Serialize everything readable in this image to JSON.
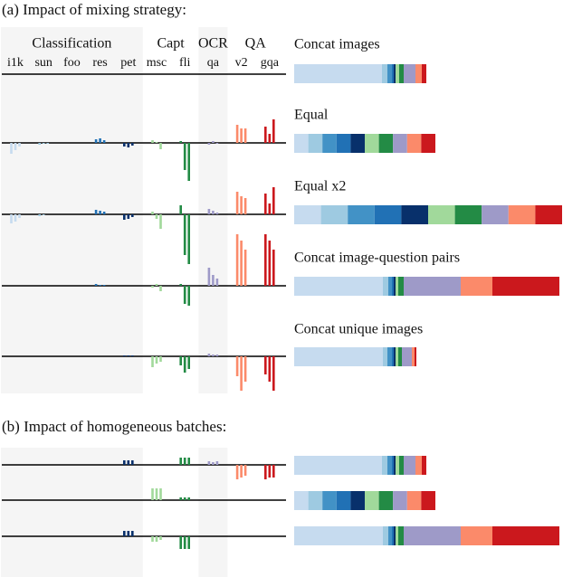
{
  "section_a": {
    "title": "(a) Impact of mixing strategy:",
    "groups": [
      {
        "label": "Classification",
        "tasks": [
          "i1k",
          "sun",
          "foo",
          "res",
          "pet"
        ]
      },
      {
        "label": "Capt",
        "tasks": [
          "msc",
          "fli"
        ]
      },
      {
        "label": "OCR",
        "tasks": [
          "qa"
        ]
      },
      {
        "label": "QA",
        "tasks": [
          "v2",
          "gqa"
        ]
      }
    ],
    "rows": [
      {
        "name": "Concat images",
        "deltas": [
          [
            0,
            0,
            0
          ],
          [
            0,
            0,
            0
          ],
          [
            0,
            0,
            0
          ],
          [
            0,
            0,
            0
          ],
          [
            0,
            0,
            0
          ],
          [
            0,
            0,
            0
          ],
          [
            0,
            0,
            0
          ],
          [
            0,
            0,
            0
          ],
          [
            0,
            0,
            0
          ],
          [
            0,
            0,
            0
          ]
        ],
        "mixture": [
          97,
          6,
          5,
          2,
          2,
          4,
          5,
          13,
          7,
          5
        ]
      },
      {
        "name": "Equal",
        "deltas": [
          [
            -12,
            -8,
            -4
          ],
          [
            -2,
            -1,
            -1
          ],
          [
            0,
            0,
            0
          ],
          [
            4,
            5,
            3
          ],
          [
            -4,
            -5,
            -3
          ],
          [
            3,
            1,
            -7
          ],
          [
            2,
            -30,
            -42
          ],
          [
            -2,
            2,
            -1
          ],
          [
            20,
            16,
            16
          ],
          [
            18,
            10,
            26
          ]
        ],
        "mixture": [
          15.6,
          15.6,
          15.6,
          15.6,
          15.6,
          15.6,
          15.6,
          15.6,
          15.6,
          15.6
        ]
      },
      {
        "name": "Equal x2",
        "deltas": [
          [
            -10,
            -8,
            -4
          ],
          [
            -2,
            -1,
            0
          ],
          [
            0,
            0,
            0
          ],
          [
            5,
            4,
            3
          ],
          [
            -6,
            -5,
            -3
          ],
          [
            3,
            -5,
            -16
          ],
          [
            10,
            -45,
            -55
          ],
          [
            6,
            4,
            2
          ],
          [
            25,
            20,
            18
          ],
          [
            23,
            12,
            30
          ]
        ],
        "mixture": [
          29.6,
          29.6,
          29.6,
          29.6,
          29.6,
          29.6,
          29.6,
          29.6,
          29.6,
          29.6
        ]
      },
      {
        "name": "Concat image-question pairs",
        "deltas": [
          [
            0,
            0,
            0
          ],
          [
            0,
            0,
            0
          ],
          [
            0,
            0,
            0
          ],
          [
            2,
            1,
            1
          ],
          [
            0,
            0,
            0
          ],
          [
            -2,
            2,
            -6
          ],
          [
            2,
            -20,
            -22
          ],
          [
            20,
            12,
            8
          ],
          [
            57,
            50,
            40
          ],
          [
            57,
            50,
            40
          ]
        ],
        "mixture": [
          98,
          6,
          4,
          2,
          2,
          3,
          6,
          63,
          35,
          74
        ]
      },
      {
        "name": "Concat unique images",
        "deltas": [
          [
            0,
            0,
            0
          ],
          [
            0,
            0,
            0
          ],
          [
            0,
            0,
            0
          ],
          [
            0,
            0,
            0
          ],
          [
            1,
            1,
            1
          ],
          [
            -12,
            -8,
            -6
          ],
          [
            -10,
            -18,
            -14
          ],
          [
            3,
            2,
            2
          ],
          [
            -22,
            -38,
            -28
          ],
          [
            -20,
            -28,
            -38
          ]
        ],
        "mixture": [
          98,
          5,
          5,
          2,
          2,
          3,
          4,
          11,
          3,
          2
        ]
      }
    ]
  },
  "section_b": {
    "title": "(b) Impact of homogeneous batches:",
    "rows": [
      {
        "deltas": [
          [
            0,
            0,
            0
          ],
          [
            0,
            0,
            0
          ],
          [
            0,
            0,
            0
          ],
          [
            0,
            0,
            0
          ],
          [
            5,
            5,
            5
          ],
          [
            0,
            0,
            0
          ],
          [
            8,
            8,
            8
          ],
          [
            4,
            3,
            4
          ],
          [
            -16,
            -14,
            -12
          ],
          [
            -16,
            -14,
            -14
          ]
        ],
        "mixture": [
          97,
          6,
          5,
          2,
          2,
          4,
          5,
          13,
          7,
          5
        ]
      },
      {
        "deltas": [
          [
            0,
            0,
            0
          ],
          [
            0,
            0,
            0
          ],
          [
            0,
            0,
            0
          ],
          [
            0,
            0,
            0
          ],
          [
            0,
            0,
            0
          ],
          [
            13,
            13,
            13
          ],
          [
            3,
            3,
            3
          ],
          [
            0,
            0,
            0
          ],
          [
            0,
            0,
            0
          ],
          [
            0,
            0,
            0
          ]
        ],
        "mixture": [
          15.6,
          15.6,
          15.6,
          15.6,
          15.6,
          15.6,
          15.6,
          15.6,
          15.6,
          15.6
        ]
      },
      {
        "deltas": [
          [
            0,
            0,
            0
          ],
          [
            0,
            0,
            0
          ],
          [
            0,
            0,
            0
          ],
          [
            0,
            0,
            0
          ],
          [
            6,
            6,
            6
          ],
          [
            -6,
            -6,
            -4
          ],
          [
            -14,
            -14,
            -14
          ],
          [
            0,
            0,
            0
          ],
          [
            0,
            0,
            0
          ],
          [
            0,
            0,
            0
          ]
        ],
        "mixture": [
          98,
          6,
          4,
          2,
          2,
          3,
          6,
          63,
          35,
          74
        ]
      }
    ]
  },
  "colors": [
    "#c6dbef",
    "#9ecae1",
    "#4292c6",
    "#2171b5",
    "#08306b",
    "#a1d99b",
    "#238b45",
    "#9e9ac8",
    "#fb8a6a",
    "#cb181d"
  ]
}
